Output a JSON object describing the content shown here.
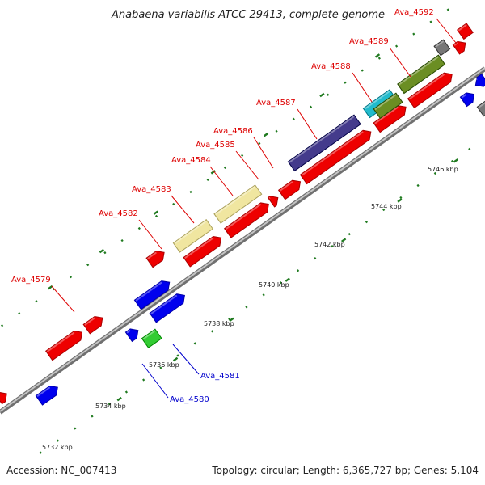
{
  "title": "Anabaena variabilis ATCC 29413, complete genome",
  "footer": {
    "accession": "Accession: NC_007413",
    "summary": "Topology: circular; Length: 6,365,727 bp; Genes: 5,104"
  },
  "colors": {
    "backbone": "#9a9a9a",
    "tick": "#1f7a1f",
    "label_red": "#dd0000",
    "label_blue": "#0000cc",
    "red": "#ee0000",
    "blue": "#0000ee",
    "green": "#33cc33",
    "grey": "#777777",
    "khaki": "#f0e6a0",
    "navy": "#443b8c",
    "olive": "#6b8e23",
    "cyan": "#22bbcc"
  },
  "kbp_marks": [
    {
      "label": "5732 kbp"
    },
    {
      "label": "5734 kbp"
    },
    {
      "label": "5736 kbp"
    },
    {
      "label": "5738 kbp"
    },
    {
      "label": "5740 kbp"
    },
    {
      "label": "5742 kbp"
    },
    {
      "label": "5744 kbp"
    },
    {
      "label": "5746 kbp"
    }
  ],
  "gene_labels": [
    {
      "name": "Ava_4579",
      "color": "red"
    },
    {
      "name": "Ava_4582",
      "color": "red"
    },
    {
      "name": "Ava_4583",
      "color": "red"
    },
    {
      "name": "Ava_4584",
      "color": "red"
    },
    {
      "name": "Ava_4585",
      "color": "red"
    },
    {
      "name": "Ava_4586",
      "color": "red"
    },
    {
      "name": "Ava_4587",
      "color": "red"
    },
    {
      "name": "Ava_4588",
      "color": "red"
    },
    {
      "name": "Ava_4589",
      "color": "red"
    },
    {
      "name": "Ava_4592",
      "color": "red"
    },
    {
      "name": "Ava_4581",
      "color": "blue"
    },
    {
      "name": "Ava_4580",
      "color": "blue"
    }
  ]
}
